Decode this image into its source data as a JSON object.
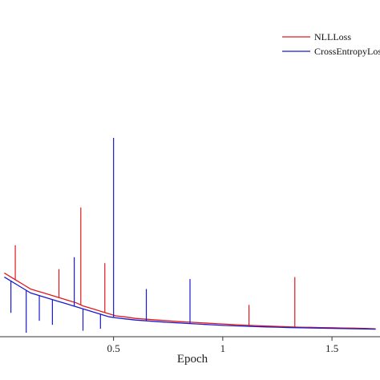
{
  "chart_data": {
    "type": "line",
    "xlabel": "Epoch",
    "xlim": [
      -0.02,
      1.72
    ],
    "ylim": [
      0,
      1
    ],
    "x_ticks": [
      {
        "value": 0.5,
        "label": "0.5"
      },
      {
        "value": 1.0,
        "label": "1"
      },
      {
        "value": 1.5,
        "label": "1.5"
      }
    ],
    "legend": {
      "placement": "top-right"
    },
    "series": [
      {
        "name": "NLLLoss",
        "color": "#e0191e",
        "x": [
          0.0,
          0.03,
          0.06,
          0.09,
          0.12,
          0.15,
          0.18,
          0.21,
          0.24,
          0.27,
          0.3,
          0.33,
          0.36,
          0.39,
          0.42,
          0.45,
          0.48,
          0.51,
          0.55,
          0.6,
          0.65,
          0.7,
          0.75,
          0.8,
          0.85,
          0.9,
          0.95,
          1.0,
          1.05,
          1.1,
          1.15,
          1.2,
          1.25,
          1.3,
          1.35,
          1.4,
          1.45,
          1.5,
          1.55,
          1.6,
          1.65,
          1.7
        ],
        "y": [
          0.32,
          0.3,
          0.28,
          0.26,
          0.24,
          0.23,
          0.22,
          0.21,
          0.2,
          0.19,
          0.18,
          0.17,
          0.155,
          0.145,
          0.135,
          0.125,
          0.115,
          0.105,
          0.1,
          0.092,
          0.088,
          0.084,
          0.08,
          0.076,
          0.073,
          0.07,
          0.067,
          0.064,
          0.061,
          0.058,
          0.056,
          0.054,
          0.052,
          0.05,
          0.048,
          0.047,
          0.046,
          0.045,
          0.044,
          0.043,
          0.042,
          0.04
        ],
        "spikes": [
          {
            "x": 0.05,
            "y": 0.46
          },
          {
            "x": 0.25,
            "y": 0.34
          },
          {
            "x": 0.35,
            "y": 0.65
          },
          {
            "x": 0.46,
            "y": 0.37
          },
          {
            "x": 1.12,
            "y": 0.16
          },
          {
            "x": 1.33,
            "y": 0.3
          }
        ]
      },
      {
        "name": "CrossEntropyLoss",
        "color": "#1a1acf",
        "x": [
          0.0,
          0.03,
          0.06,
          0.09,
          0.12,
          0.15,
          0.18,
          0.21,
          0.24,
          0.27,
          0.3,
          0.33,
          0.36,
          0.39,
          0.42,
          0.45,
          0.48,
          0.51,
          0.55,
          0.6,
          0.65,
          0.7,
          0.75,
          0.8,
          0.85,
          0.9,
          0.95,
          1.0,
          1.05,
          1.1,
          1.15,
          1.2,
          1.25,
          1.3,
          1.35,
          1.4,
          1.45,
          1.5,
          1.55,
          1.6,
          1.65,
          1.7
        ],
        "y": [
          0.3,
          0.28,
          0.26,
          0.24,
          0.22,
          0.21,
          0.2,
          0.19,
          0.18,
          0.17,
          0.16,
          0.15,
          0.14,
          0.13,
          0.12,
          0.11,
          0.1,
          0.095,
          0.09,
          0.084,
          0.08,
          0.076,
          0.072,
          0.069,
          0.066,
          0.063,
          0.06,
          0.057,
          0.055,
          0.053,
          0.051,
          0.049,
          0.048,
          0.046,
          0.045,
          0.044,
          0.043,
          0.042,
          0.041,
          0.04,
          0.039,
          0.038
        ],
        "spikes": [
          {
            "x": 0.5,
            "y": 1.0
          },
          {
            "x": 0.32,
            "y": 0.4
          },
          {
            "x": 0.65,
            "y": 0.24
          },
          {
            "x": 0.85,
            "y": 0.29
          }
        ],
        "dips": [
          {
            "x": 0.03,
            "y": 0.12
          },
          {
            "x": 0.1,
            "y": 0.02
          },
          {
            "x": 0.16,
            "y": 0.08
          },
          {
            "x": 0.22,
            "y": 0.06
          },
          {
            "x": 0.36,
            "y": 0.03
          },
          {
            "x": 0.44,
            "y": 0.04
          }
        ]
      }
    ]
  }
}
